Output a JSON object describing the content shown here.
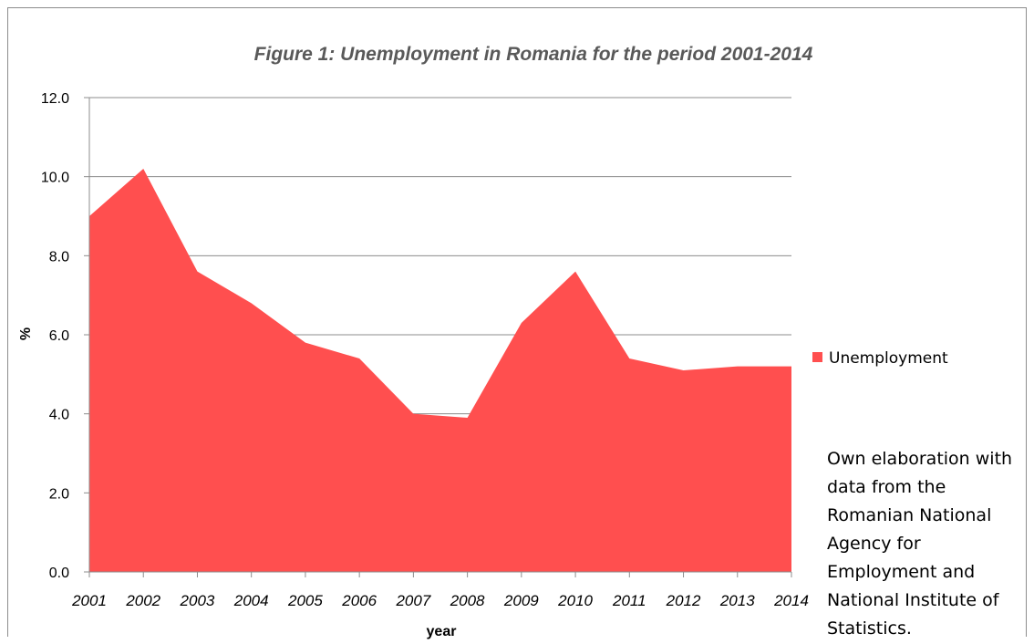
{
  "chart_data": {
    "type": "area",
    "title": "Figure 1: Unemployment in Romania for the period 2001-2014",
    "xlabel": "year",
    "ylabel": "%",
    "x": [
      "2001",
      "2002",
      "2003",
      "2004",
      "2005",
      "2006",
      "2007",
      "2008",
      "2009",
      "2010",
      "2011",
      "2012",
      "2013",
      "2014"
    ],
    "series": [
      {
        "name": "Unemployment",
        "values": [
          9.0,
          10.2,
          7.6,
          6.8,
          5.8,
          5.4,
          4.0,
          3.9,
          6.3,
          7.6,
          5.4,
          5.1,
          5.2,
          5.2
        ]
      }
    ],
    "yticks": [
      "0.0",
      "2.0",
      "4.0",
      "6.0",
      "8.0",
      "10.0",
      "12.0"
    ],
    "ylim": [
      0,
      12
    ],
    "grid": "horizontal",
    "legend_position": "right",
    "series_color": "#ff4f4f"
  },
  "note": "Own elaboration with data from the Romanian National Agency for Employment and National Institute of Statistics."
}
